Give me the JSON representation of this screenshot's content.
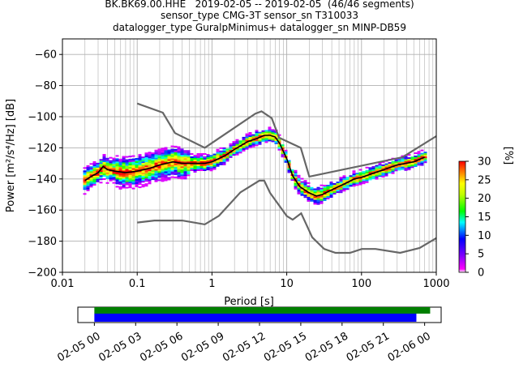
{
  "header": {
    "title_lines": [
      "BK.BK69.00.HHE   2019-02-05 -- 2019-02-05  (46/46 segments)",
      "sensor_type CMG-3T sensor_sn T310033",
      "datalogger_type GuralpMinimus+ datalogger_sn MINP-DB59"
    ]
  },
  "colors": {
    "noise_model": "#666666",
    "mode_line": "#000000",
    "grid": "#b0b0b0",
    "coverage_data": "#008000",
    "coverage_gaps": "#0000ff"
  },
  "chart_data": [
    {
      "type": "heatmap",
      "title": "",
      "xlabel": "Period [s]",
      "ylabel": "Power [m²/s⁴/Hz] [dB]",
      "xscale": "log",
      "xlim": [
        0.01,
        1000
      ],
      "ylim": [
        -200,
        -50
      ],
      "grid": true,
      "x_ticks": [
        0.01,
        0.1,
        1,
        10,
        100,
        1000
      ],
      "x_tick_labels": [
        "0.01",
        "0.1",
        "1",
        "10",
        "100",
        "1000"
      ],
      "y_ticks": [
        -200,
        -180,
        -160,
        -140,
        -120,
        -100,
        -80,
        -60
      ],
      "y_tick_labels": [
        "−200",
        "−180",
        "−160",
        "−140",
        "−120",
        "−100",
        "−80",
        "−60"
      ],
      "colorbar": {
        "label": "[%]",
        "min": 0,
        "max": 30,
        "ticks": [
          0,
          5,
          10,
          15,
          20,
          25,
          30
        ],
        "tick_labels": [
          "0",
          "5",
          "10",
          "15",
          "20",
          "25",
          "30"
        ]
      },
      "high_noise_model": {
        "x": [
          0.1,
          0.22,
          0.32,
          0.8,
          3.8,
          4.6,
          6.3,
          7.9,
          15.4,
          20,
          354.8,
          1000
        ],
        "y": [
          -91.5,
          -97.4,
          -110.5,
          -120,
          -98,
          -96.5,
          -101,
          -113.5,
          -120,
          -138.5,
          -126,
          -112.5
        ]
      },
      "low_noise_model": {
        "x": [
          0.1,
          0.17,
          0.4,
          0.8,
          1.24,
          2.4,
          4.3,
          5,
          6,
          10,
          12,
          15.6,
          21.9,
          31.6,
          45,
          70,
          101,
          154,
          328,
          600,
          1000
        ],
        "y": [
          -168,
          -166.7,
          -166.7,
          -169.2,
          -163.7,
          -148.6,
          -141.1,
          -141.1,
          -149,
          -163.8,
          -166.2,
          -162.1,
          -177.5,
          -185,
          -187.5,
          -187.5,
          -185,
          -185,
          -187.5,
          -184.4,
          -178
        ]
      },
      "mode_line": {
        "x": [
          0.02,
          0.025,
          0.03,
          0.035,
          0.04,
          0.05,
          0.07,
          0.1,
          0.15,
          0.2,
          0.3,
          0.4,
          0.6,
          0.8,
          1,
          1.5,
          2,
          3,
          4,
          5,
          6,
          7,
          8,
          10,
          12,
          15,
          20,
          25,
          30,
          40,
          60,
          80,
          100,
          150,
          200,
          300,
          500,
          700
        ],
        "y": [
          -141,
          -138,
          -136,
          -132,
          -134,
          -135,
          -136,
          -135,
          -133,
          -131,
          -129,
          -130,
          -130,
          -130,
          -129,
          -125,
          -121,
          -116,
          -114,
          -112,
          -112,
          -113,
          -117,
          -127,
          -138,
          -145,
          -149,
          -151,
          -150,
          -147,
          -143,
          -140,
          -139,
          -136,
          -134,
          -131,
          -129,
          -126
        ]
      }
    },
    {
      "type": "timeline",
      "title": "",
      "x_tick_labels": [
        "02-05 00",
        "02-05 03",
        "02-05 06",
        "02-05 09",
        "02-05 12",
        "02-05 15",
        "02-05 18",
        "02-05 21",
        "02-06 00"
      ],
      "xlim_hours": [
        -1.2,
        25.2
      ],
      "data_span_hours": [
        0,
        24.4
      ],
      "gap_span_hours": [
        0,
        23.4
      ]
    }
  ]
}
